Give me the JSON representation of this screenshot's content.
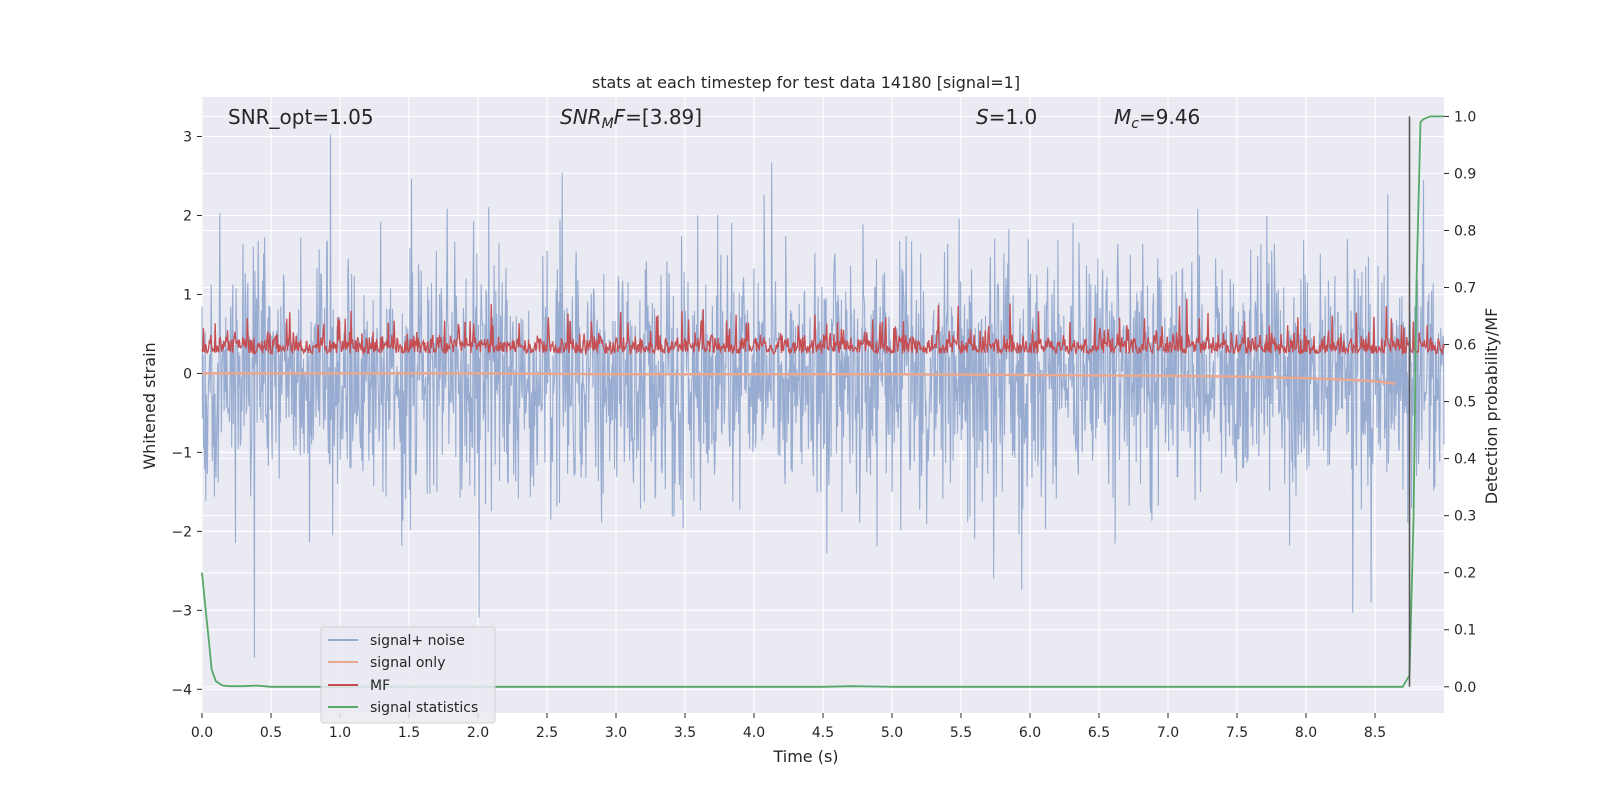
{
  "chart_data": {
    "type": "line",
    "title": "stats at each timestep for test data 14180 [signal=1]",
    "xlabel": "Time (s)",
    "ylabel": "Whitened strain",
    "y2label": "Detection probability/MF",
    "xlim": [
      0.0,
      9.0
    ],
    "ylim": [
      -4.3,
      3.5
    ],
    "y2lim": [
      -0.046,
      1.034
    ],
    "xticks": [
      0.0,
      0.5,
      1.0,
      1.5,
      2.0,
      2.5,
      3.0,
      3.5,
      4.0,
      4.5,
      5.0,
      5.5,
      6.0,
      6.5,
      7.0,
      7.5,
      8.0,
      8.5
    ],
    "xtick_labels": [
      "0.0",
      "0.5",
      "1.0",
      "1.5",
      "2.0",
      "2.5",
      "3.0",
      "3.5",
      "4.0",
      "4.5",
      "5.0",
      "5.5",
      "6.0",
      "6.5",
      "7.0",
      "7.5",
      "8.0",
      "8.5"
    ],
    "yticks": [
      3,
      2,
      1,
      0,
      -1,
      -2,
      -3,
      -4
    ],
    "ytick_labels": [
      "3",
      "2",
      "1",
      "0",
      "−1",
      "−2",
      "−3",
      "−4"
    ],
    "y2ticks": [
      1.0,
      0.9,
      0.8,
      0.7,
      0.6,
      0.5,
      0.4,
      0.3,
      0.2,
      0.1,
      0.0
    ],
    "y2tick_labels": [
      "1.0",
      "0.9",
      "0.8",
      "0.7",
      "0.6",
      "0.5",
      "0.4",
      "0.3",
      "0.2",
      "0.1",
      "0.0"
    ],
    "grid": true,
    "legend_position": "lower-left",
    "annotations": {
      "snr_opt": "SNR_opt=1.05",
      "snr_mf_italic": "SNR",
      "snr_mf_sub": "M",
      "snr_mf_italic2": "F",
      "snr_mf_rest": "=[3.89]",
      "s_italic": "S",
      "s_rest": "=1.0",
      "mc_italic": "M",
      "mc_sub": "c",
      "mc_rest": "=9.46"
    },
    "vertical_marker_x": 8.75,
    "series": [
      {
        "name": "signal+ noise",
        "color": "#94a9cf",
        "axis": "left",
        "description_values": {
          "center": 0.0,
          "typical_amplitude": 1.6,
          "max": 3.45,
          "min": -3.6
        }
      },
      {
        "name": "signal only",
        "color": "#e8a890",
        "axis": "left",
        "x": [
          0.0,
          1.0,
          2.0,
          3.0,
          4.0,
          5.0,
          6.0,
          7.0,
          7.5,
          8.0,
          8.3,
          8.5,
          8.6,
          8.65
        ],
        "values": [
          0.0,
          0.0,
          0.0,
          -0.01,
          -0.01,
          -0.01,
          -0.02,
          -0.03,
          -0.04,
          -0.06,
          -0.08,
          -0.1,
          -0.12,
          -0.13
        ]
      },
      {
        "name": "MF",
        "color": "#c44e52",
        "axis": "left",
        "description_values": {
          "center": 0.3,
          "range": [
            0.0,
            0.95
          ]
        }
      },
      {
        "name": "signal statistics",
        "color": "#55a868",
        "axis": "right",
        "x": [
          0.0,
          0.02,
          0.05,
          0.07,
          0.1,
          0.15,
          0.2,
          0.3,
          0.4,
          0.5,
          1.0,
          2.0,
          3.0,
          4.0,
          4.5,
          4.7,
          5.0,
          6.0,
          7.0,
          8.0,
          8.5,
          8.7,
          8.75,
          8.78,
          8.8,
          8.83,
          8.85,
          8.9,
          8.95,
          9.0
        ],
        "values": [
          0.2,
          0.15,
          0.08,
          0.03,
          0.01,
          0.002,
          0.001,
          0.001,
          0.002,
          0.0,
          0.0,
          0.0,
          0.0,
          0.0,
          0.0,
          0.001,
          0.0,
          0.0,
          0.0,
          0.0,
          0.0,
          0.0,
          0.02,
          0.3,
          0.7,
          0.99,
          0.995,
          1.0,
          1.0,
          1.0
        ]
      }
    ]
  }
}
